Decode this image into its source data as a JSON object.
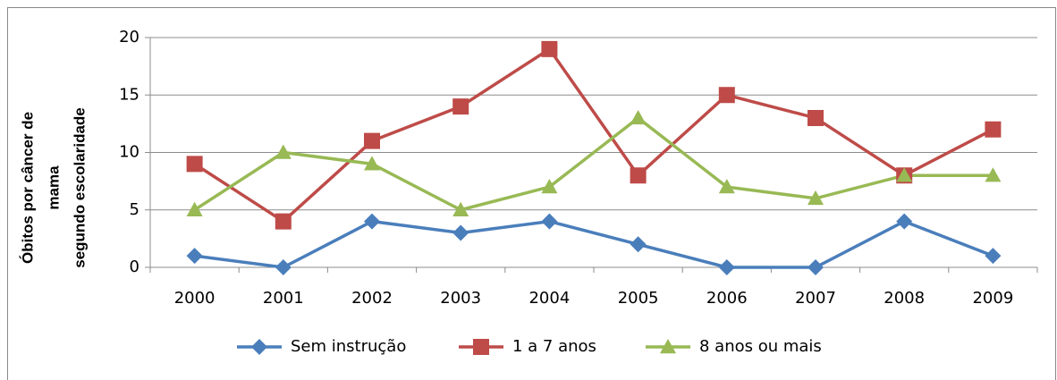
{
  "chart_data": {
    "type": "line",
    "ylabel": [
      "Óbitos por câncer de",
      "mama",
      "segundo escolaridade"
    ],
    "categories": [
      "2000",
      "2001",
      "2002",
      "2003",
      "2004",
      "2005",
      "2006",
      "2007",
      "2008",
      "2009"
    ],
    "series": [
      {
        "name": "Sem instrução",
        "color": "#4a7ebb",
        "marker": "diamond",
        "values": [
          1,
          0,
          4,
          3,
          4,
          2,
          0,
          0,
          4,
          1
        ]
      },
      {
        "name": "1 a 7 anos",
        "color": "#be4b48",
        "marker": "square",
        "values": [
          9,
          4,
          11,
          14,
          19,
          8,
          15,
          13,
          8,
          12
        ]
      },
      {
        "name": "8 anos ou mais",
        "color": "#98b954",
        "marker": "triangle",
        "values": [
          5,
          10,
          9,
          5,
          7,
          13,
          7,
          6,
          8,
          8
        ]
      }
    ],
    "ylim": [
      0,
      20
    ],
    "yticks": [
      0,
      5,
      10,
      15,
      20
    ],
    "grid": true,
    "legend": "bottom"
  }
}
